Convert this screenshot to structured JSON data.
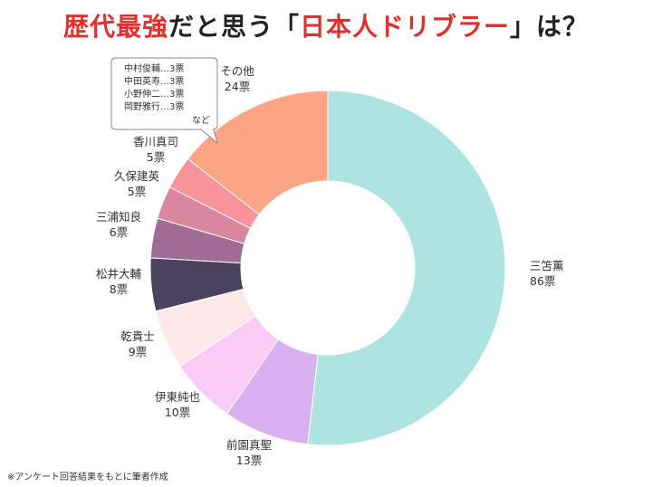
{
  "title": {
    "prefix": "歴代最強",
    "middle": "だと思う「",
    "highlight": "日本人ドリブラー",
    "suffix": "」は？"
  },
  "chart_data": {
    "type": "pie",
    "donut": true,
    "start_angle_deg": 0,
    "direction": "clockwise",
    "slices": [
      {
        "name": "三笘薫",
        "value": 86,
        "unit": "票",
        "color": "#ade3e1"
      },
      {
        "name": "前園真聖",
        "value": 13,
        "unit": "票",
        "color": "#d9b0f0"
      },
      {
        "name": "伊東純也",
        "value": 10,
        "unit": "票",
        "color": "#fbcbf8"
      },
      {
        "name": "乾貴士",
        "value": 9,
        "unit": "票",
        "color": "#ffe8ea"
      },
      {
        "name": "松井大輔",
        "value": 8,
        "unit": "票",
        "color": "#4a4360"
      },
      {
        "name": "三浦知良",
        "value": 6,
        "unit": "票",
        "color": "#a06b95"
      },
      {
        "name": "久保建英",
        "value": 5,
        "unit": "票",
        "color": "#d9869f"
      },
      {
        "name": "香川真司",
        "value": 5,
        "unit": "票",
        "color": "#f8939b"
      },
      {
        "name": "その他",
        "value": 24,
        "unit": "票",
        "color": "#fca584"
      }
    ],
    "callout": {
      "lines": [
        "中村俊輔…3票",
        "中田英寿…3票",
        "小野伸二…3票",
        "岡野雅行…3票"
      ],
      "tail": "など"
    }
  },
  "footnote": "※アンケート回答結果をもとに筆者作成"
}
